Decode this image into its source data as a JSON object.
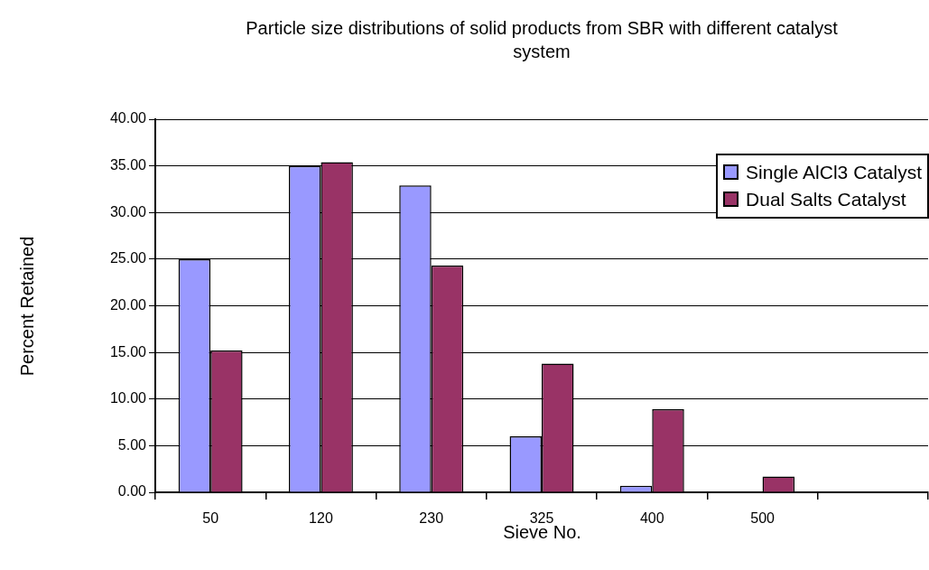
{
  "chart_data": {
    "type": "bar",
    "title": "Particle size distributions of solid products from SBR with different catalyst system",
    "xlabel": "Sieve No.",
    "ylabel": "Percent Retained",
    "categories": [
      "50",
      "120",
      "230",
      "325",
      "400",
      "500",
      null
    ],
    "series": [
      {
        "name": "Single AlCl3 Catalyst",
        "color": "#9999ff",
        "values": [
          25.0,
          35.0,
          32.9,
          6.0,
          0.7,
          0,
          null
        ]
      },
      {
        "name": "Dual Salts Catalyst",
        "color": "#993366",
        "values": [
          15.2,
          35.4,
          24.3,
          13.8,
          8.9,
          1.7,
          null
        ]
      }
    ],
    "ylim": [
      0,
      40
    ],
    "yticks": [
      {
        "value": 0,
        "label": "0.00"
      },
      {
        "value": 5,
        "label": "5.00"
      },
      {
        "value": 10,
        "label": "10.00"
      },
      {
        "value": 15,
        "label": "15.00"
      },
      {
        "value": 20,
        "label": "20.00"
      },
      {
        "value": 25,
        "label": "25.00"
      },
      {
        "value": 30,
        "label": "30.00"
      },
      {
        "value": 35,
        "label": "35.00"
      },
      {
        "value": 40,
        "label": "40.00"
      }
    ],
    "grid": "y",
    "legend": "top right"
  }
}
